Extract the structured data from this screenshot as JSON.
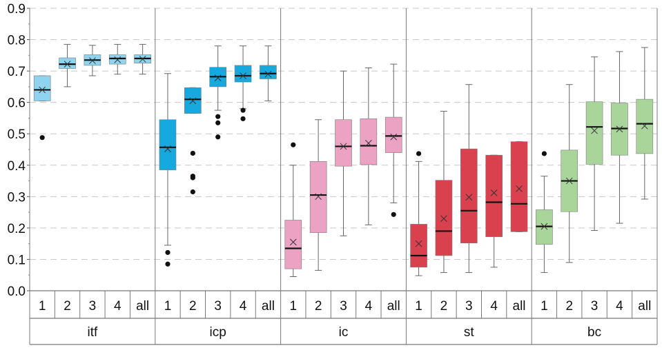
{
  "chart_data": {
    "type": "box",
    "title": "",
    "xlabel": "",
    "ylabel": "",
    "ylim": [
      0,
      0.9
    ],
    "y_ticks": [
      0.0,
      0.1,
      0.2,
      0.3,
      0.4,
      0.5,
      0.6,
      0.7,
      0.8,
      0.9
    ],
    "y_tick_labels": [
      "0.0",
      "0.1",
      "0.2",
      "0.3",
      "0.4",
      "0.5",
      "0.6",
      "0.7",
      "0.8",
      "0.9"
    ],
    "grid": true,
    "subcategories": [
      "1",
      "2",
      "3",
      "4",
      "all"
    ],
    "groups": [
      {
        "name": "itf",
        "color": "#8fd3ef",
        "boxes": [
          {
            "label": "1",
            "min": 0.605,
            "q1": 0.605,
            "median": 0.64,
            "q3": 0.685,
            "max": 0.685,
            "mean": 0.64,
            "outliers": [
              0.488
            ]
          },
          {
            "label": "2",
            "min": 0.65,
            "q1": 0.708,
            "median": 0.722,
            "q3": 0.742,
            "max": 0.785,
            "mean": 0.722,
            "outliers": []
          },
          {
            "label": "3",
            "min": 0.685,
            "q1": 0.718,
            "median": 0.735,
            "q3": 0.752,
            "max": 0.782,
            "mean": 0.733,
            "outliers": []
          },
          {
            "label": "4",
            "min": 0.69,
            "q1": 0.722,
            "median": 0.74,
            "q3": 0.752,
            "max": 0.785,
            "mean": 0.736,
            "outliers": []
          },
          {
            "label": "all",
            "min": 0.69,
            "q1": 0.725,
            "median": 0.74,
            "q3": 0.752,
            "max": 0.785,
            "mean": 0.738,
            "outliers": []
          }
        ]
      },
      {
        "name": "icp",
        "color": "#17a8de",
        "boxes": [
          {
            "label": "1",
            "min": 0.145,
            "q1": 0.385,
            "median": 0.457,
            "q3": 0.545,
            "max": 0.692,
            "mean": 0.452,
            "outliers": [
              0.122,
              0.085
            ]
          },
          {
            "label": "2",
            "min": 0.565,
            "q1": 0.565,
            "median": 0.61,
            "q3": 0.647,
            "max": 0.647,
            "mean": 0.605,
            "outliers": [
              0.438,
              0.365,
              0.36,
              0.315
            ]
          },
          {
            "label": "3",
            "min": 0.575,
            "q1": 0.65,
            "median": 0.682,
            "q3": 0.712,
            "max": 0.78,
            "mean": 0.678,
            "outliers": [
              0.555,
              0.535,
              0.49
            ]
          },
          {
            "label": "4",
            "min": 0.58,
            "q1": 0.665,
            "median": 0.685,
            "q3": 0.718,
            "max": 0.78,
            "mean": 0.685,
            "outliers": [
              0.575,
              0.548
            ]
          },
          {
            "label": "all",
            "min": 0.605,
            "q1": 0.675,
            "median": 0.692,
            "q3": 0.718,
            "max": 0.78,
            "mean": 0.69,
            "outliers": []
          }
        ]
      },
      {
        "name": "ic",
        "color": "#eba2c3",
        "boxes": [
          {
            "label": "1",
            "min": 0.045,
            "q1": 0.07,
            "median": 0.135,
            "q3": 0.225,
            "max": 0.4,
            "mean": 0.155,
            "outliers": [
              0.465
            ]
          },
          {
            "label": "2",
            "min": 0.065,
            "q1": 0.185,
            "median": 0.305,
            "q3": 0.412,
            "max": 0.545,
            "mean": 0.3,
            "outliers": []
          },
          {
            "label": "3",
            "min": 0.175,
            "q1": 0.397,
            "median": 0.46,
            "q3": 0.545,
            "max": 0.7,
            "mean": 0.46,
            "outliers": []
          },
          {
            "label": "4",
            "min": 0.21,
            "q1": 0.402,
            "median": 0.462,
            "q3": 0.548,
            "max": 0.71,
            "mean": 0.47,
            "outliers": []
          },
          {
            "label": "all",
            "min": 0.28,
            "q1": 0.44,
            "median": 0.493,
            "q3": 0.553,
            "max": 0.722,
            "mean": 0.49,
            "outliers": [
              0.243
            ]
          }
        ]
      },
      {
        "name": "st",
        "color": "#d9414f",
        "boxes": [
          {
            "label": "1",
            "min": 0.048,
            "q1": 0.075,
            "median": 0.112,
            "q3": 0.212,
            "max": 0.412,
            "mean": 0.15,
            "outliers": [
              0.437
            ]
          },
          {
            "label": "2",
            "min": 0.058,
            "q1": 0.112,
            "median": 0.19,
            "q3": 0.352,
            "max": 0.572,
            "mean": 0.23,
            "outliers": []
          },
          {
            "label": "3",
            "min": 0.058,
            "q1": 0.152,
            "median": 0.255,
            "q3": 0.452,
            "max": 0.657,
            "mean": 0.298,
            "outliers": []
          },
          {
            "label": "4",
            "min": 0.075,
            "q1": 0.172,
            "median": 0.282,
            "q3": 0.432,
            "max": 0.432,
            "mean": 0.312,
            "outliers": []
          },
          {
            "label": "all",
            "min": 0.188,
            "q1": 0.188,
            "median": 0.277,
            "q3": 0.475,
            "max": 0.475,
            "mean": 0.325,
            "outliers": []
          }
        ]
      },
      {
        "name": "bc",
        "color": "#a9d59b",
        "boxes": [
          {
            "label": "1",
            "min": 0.058,
            "q1": 0.148,
            "median": 0.205,
            "q3": 0.258,
            "max": 0.365,
            "mean": 0.205,
            "outliers": [
              0.437
            ]
          },
          {
            "label": "2",
            "min": 0.09,
            "q1": 0.252,
            "median": 0.35,
            "q3": 0.448,
            "max": 0.657,
            "mean": 0.35,
            "outliers": []
          },
          {
            "label": "3",
            "min": 0.192,
            "q1": 0.403,
            "median": 0.522,
            "q3": 0.602,
            "max": 0.745,
            "mean": 0.51,
            "outliers": []
          },
          {
            "label": "4",
            "min": 0.215,
            "q1": 0.432,
            "median": 0.517,
            "q3": 0.598,
            "max": 0.762,
            "mean": 0.515,
            "outliers": []
          },
          {
            "label": "all",
            "min": 0.292,
            "q1": 0.437,
            "median": 0.532,
            "q3": 0.61,
            "max": 0.775,
            "mean": 0.525,
            "outliers": []
          }
        ]
      }
    ]
  }
}
